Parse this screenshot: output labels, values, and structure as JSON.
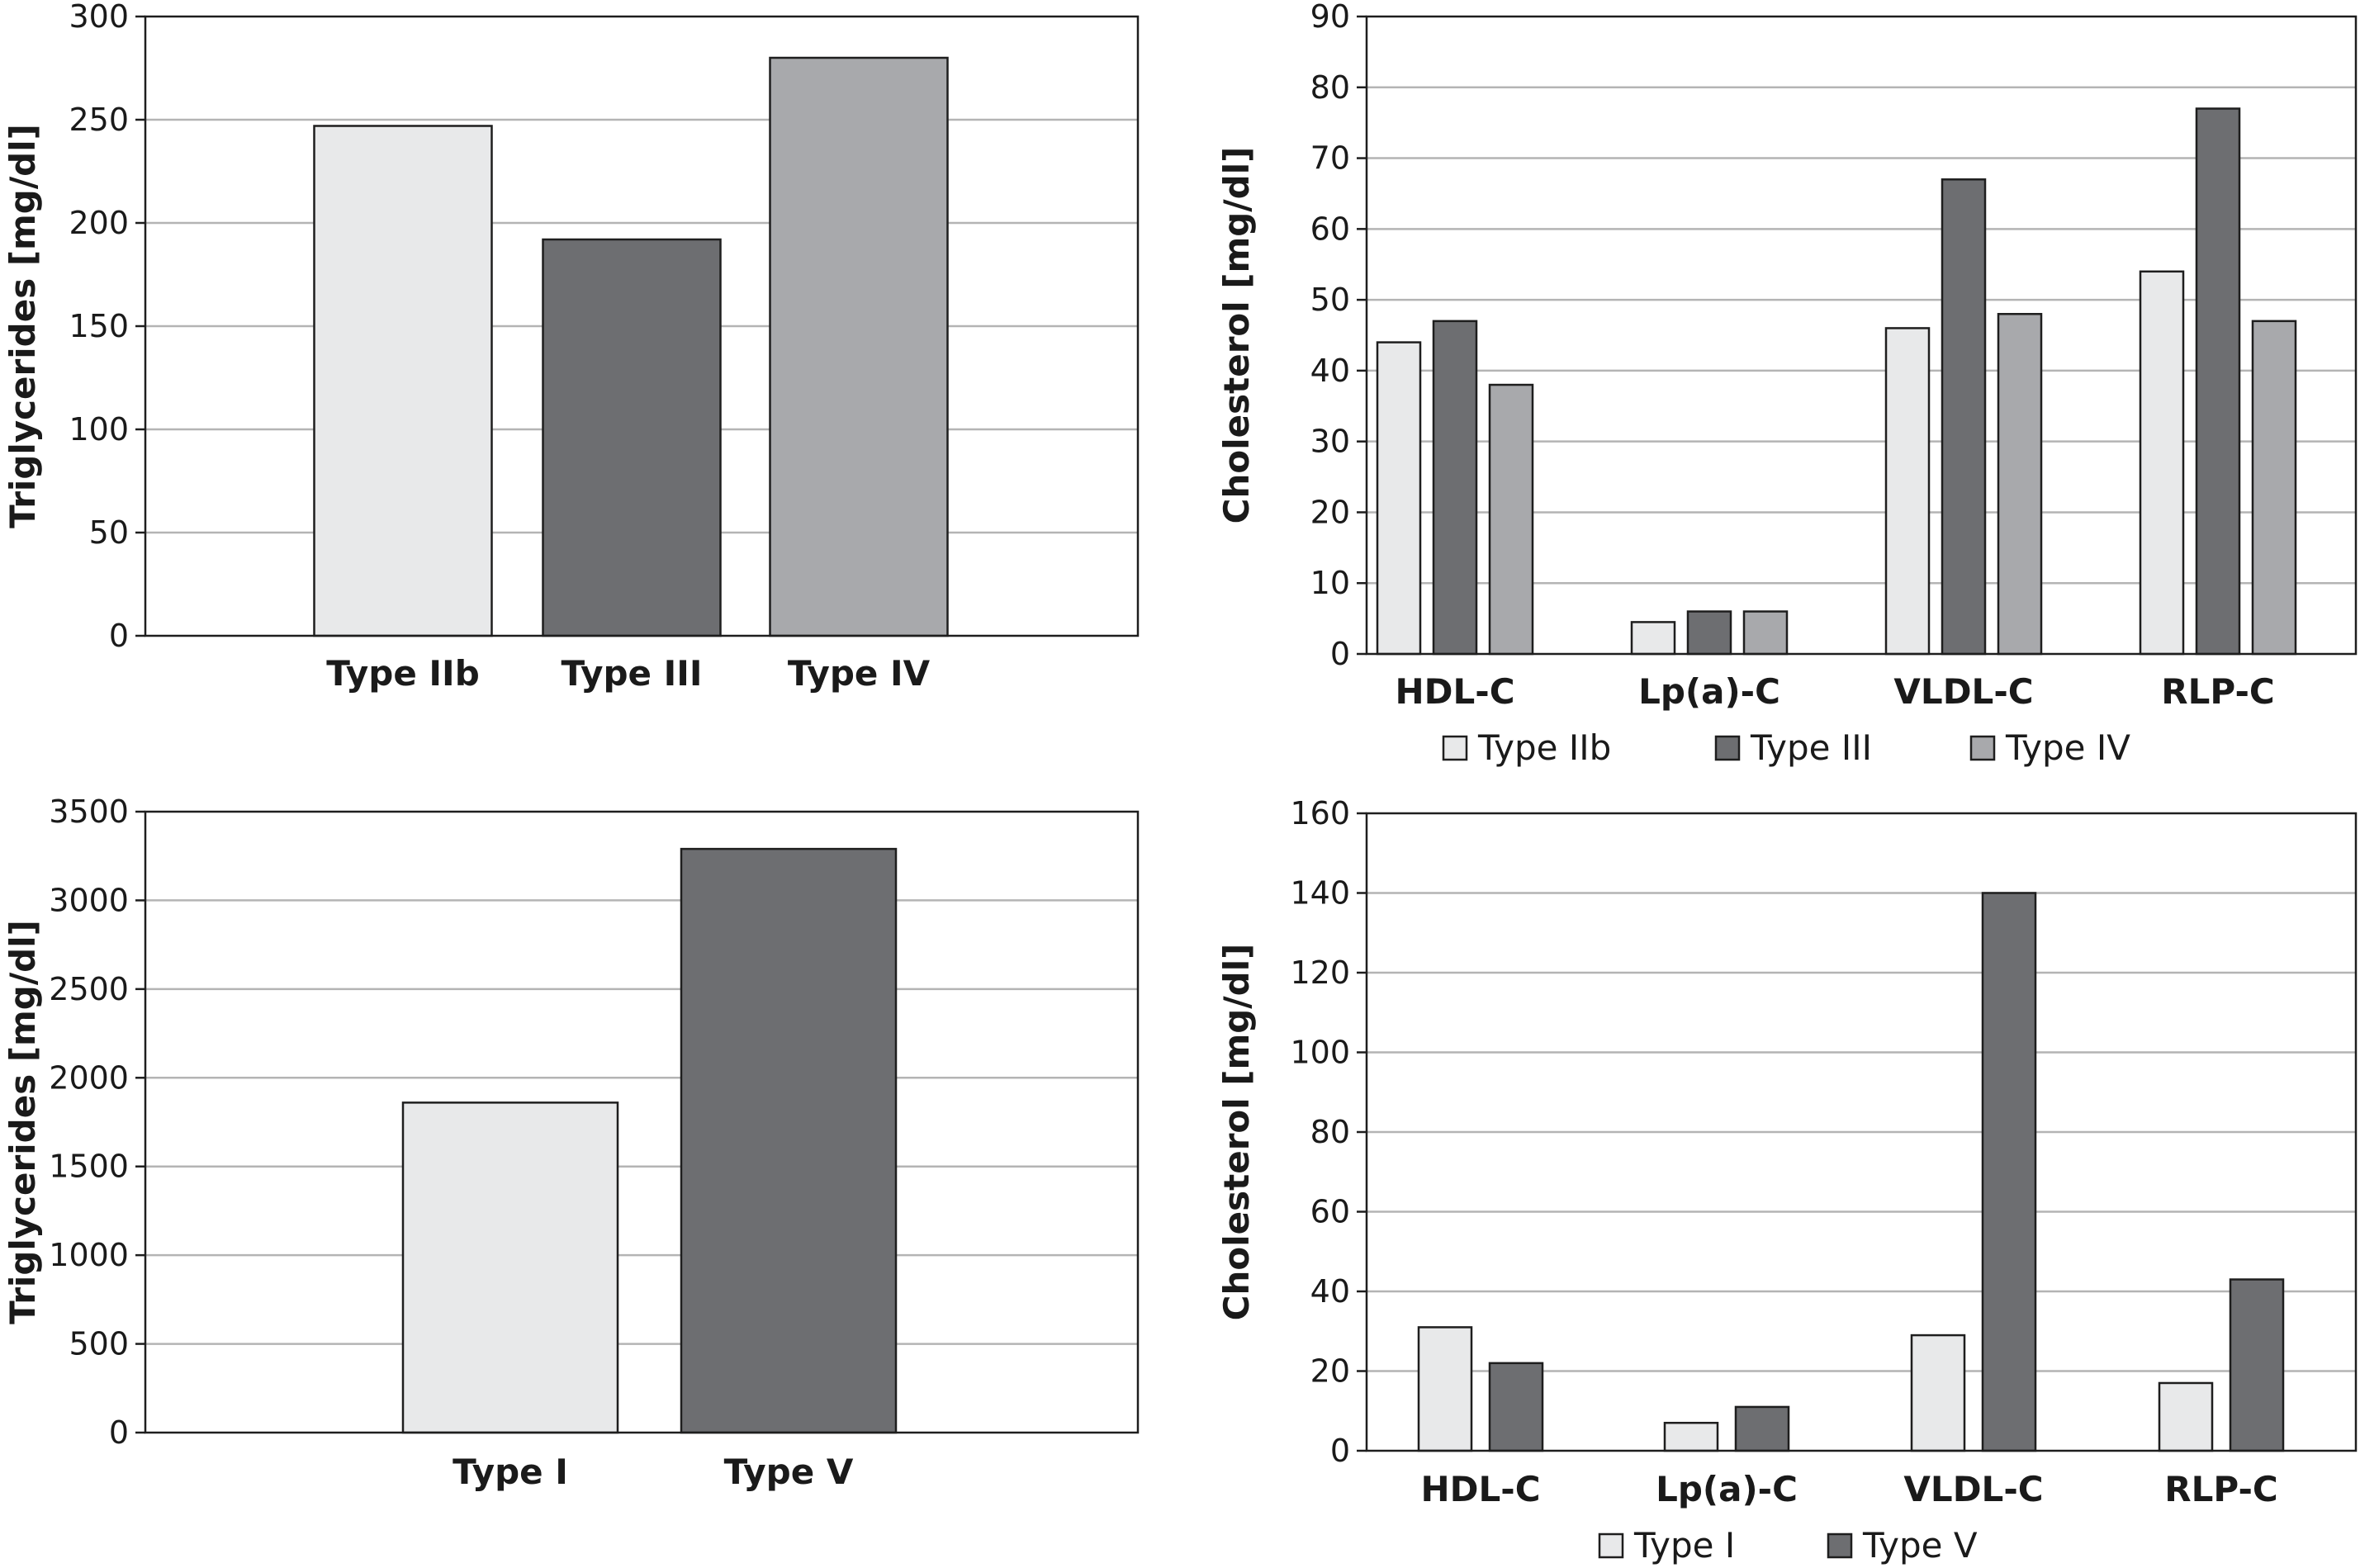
{
  "colors": {
    "light": "#e8e9ea",
    "dark": "#6d6e71",
    "mid": "#a8a9ac"
  },
  "chart_data": [
    {
      "id": "tg-2b-3-4",
      "type": "bar",
      "ylabel": "Triglycerides [mg/dl]",
      "ylim": [
        0,
        300
      ],
      "yticks": [
        0,
        50,
        100,
        150,
        200,
        250,
        300
      ],
      "categories": [
        "Type IIb",
        "Type III",
        "Type IV"
      ],
      "values": [
        247,
        192,
        280
      ],
      "bar_colors": [
        "#e8e9ea",
        "#6d6e71",
        "#a8a9ac"
      ],
      "grid": true,
      "legend": "none"
    },
    {
      "id": "chol-2b-3-4",
      "type": "bar",
      "ylabel": "Cholesterol [mg/dl]",
      "ylim": [
        0,
        90
      ],
      "yticks": [
        0,
        10,
        20,
        30,
        40,
        50,
        60,
        70,
        80,
        90
      ],
      "categories": [
        "HDL-C",
        "Lp(a)-C",
        "VLDL-C",
        "RLP-C"
      ],
      "series": [
        {
          "name": "Type IIb",
          "color": "#e8e9ea",
          "values": [
            44,
            4.5,
            46,
            54
          ]
        },
        {
          "name": "Type III",
          "color": "#6d6e71",
          "values": [
            47,
            6,
            67,
            77
          ]
        },
        {
          "name": "Type IV",
          "color": "#a8a9ac",
          "values": [
            38,
            6,
            48,
            47
          ]
        }
      ],
      "grid": true,
      "legend": "bottom"
    },
    {
      "id": "tg-1-5",
      "type": "bar",
      "ylabel": "Triglycerides [mg/dl]",
      "ylim": [
        0,
        3500
      ],
      "yticks": [
        0,
        500,
        1000,
        1500,
        2000,
        2500,
        3000,
        3500
      ],
      "categories": [
        "Type I",
        "Type V"
      ],
      "values": [
        1860,
        3290
      ],
      "bar_colors": [
        "#e8e9ea",
        "#6d6e71"
      ],
      "grid": true,
      "legend": "none"
    },
    {
      "id": "chol-1-5",
      "type": "bar",
      "ylabel": "Cholesterol [mg/dl]",
      "ylim": [
        0,
        160
      ],
      "yticks": [
        0,
        20,
        40,
        60,
        80,
        100,
        120,
        140,
        160
      ],
      "categories": [
        "HDL-C",
        "Lp(a)-C",
        "VLDL-C",
        "RLP-C"
      ],
      "series": [
        {
          "name": "Type I",
          "color": "#e8e9ea",
          "values": [
            31,
            7,
            29,
            17
          ]
        },
        {
          "name": "Type V",
          "color": "#6d6e71",
          "values": [
            22,
            11,
            140,
            43
          ]
        }
      ],
      "grid": true,
      "legend": "bottom"
    }
  ]
}
